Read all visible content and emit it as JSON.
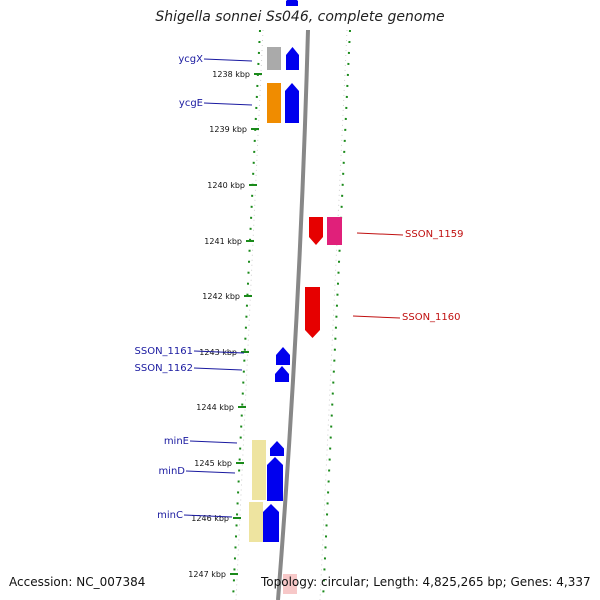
{
  "title": "Shigella sonnei Ss046, complete genome",
  "footer": {
    "accession": "Accession: NC_007384",
    "summary": "Topology: circular; Length: 4,825,265 bp; Genes: 4,337"
  },
  "colors": {
    "plus_strand": "#0000ee",
    "minus_strand": "#e60000",
    "magenta_gene": "#e0207a",
    "grey_gene": "#aaaaaa",
    "orange_gene": "#f08c00",
    "pale_gene": "#eee4a0",
    "backbone": "#888888",
    "tick_green": "#1a8a1a",
    "label_left": "#1a1aa0",
    "label_right": "#c01010"
  },
  "chart_data": {
    "type": "genome-map",
    "kbp_ticks": [
      "1238 kbp",
      "1239 kbp",
      "1240 kbp",
      "1241 kbp",
      "1242 kbp",
      "1243 kbp",
      "1244 kbp",
      "1245 kbp",
      "1246 kbp",
      "1247 kbp"
    ],
    "left_labels": [
      "ycgX",
      "ycgE",
      "SSON_1161",
      "SSON_1162",
      "minE",
      "minD",
      "minC"
    ],
    "right_labels": [
      "SSON_1159",
      "SSON_1160"
    ]
  }
}
